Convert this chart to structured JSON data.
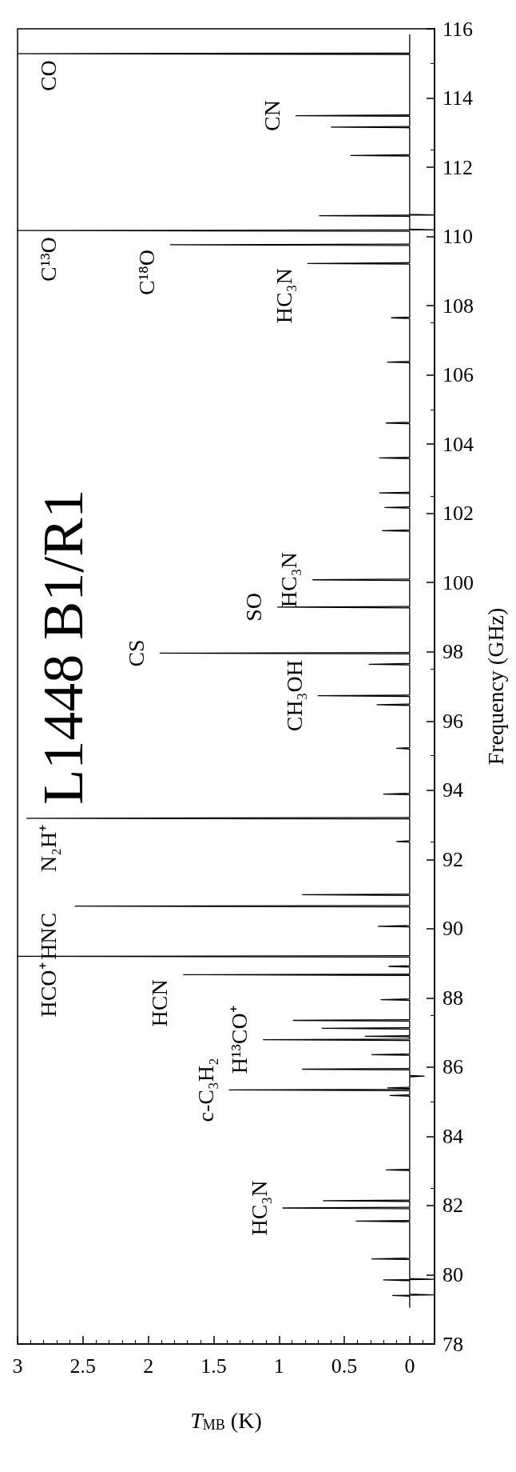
{
  "chart_data": {
    "type": "line",
    "title": "L1448 B1/R1",
    "xlabel": "T$_{MB}$ (K)",
    "ylabel": "Frequency (GHz)",
    "xlim": [
      3,
      -0.19
    ],
    "xticks": [
      3,
      2.5,
      2,
      1.5,
      1,
      0.5,
      0
    ],
    "ylim": [
      78,
      116
    ],
    "yticks": [
      78,
      80,
      82,
      84,
      86,
      88,
      90,
      92,
      94,
      96,
      98,
      100,
      102,
      104,
      106,
      108,
      110,
      112,
      114,
      116
    ],
    "grid": false,
    "marker": "none",
    "line_style": "solid",
    "series": [
      {
        "color": "#000000",
        "values": [
          79.06,
          79.38,
          79.4,
          79.42,
          79.44,
          79.83,
          79.85,
          79.87,
          79.89,
          80.44,
          80.46,
          80.48,
          81.53,
          81.55,
          81.57,
          81.91,
          81.93,
          81.95,
          82.12,
          82.14,
          82.16,
          83.01,
          83.03,
          83.05,
          85.16,
          85.18,
          85.2,
          85.32,
          85.34,
          85.36,
          85.38,
          85.4,
          85.42,
          85.72,
          85.74,
          85.76,
          85.92,
          85.94,
          85.96,
          86.34,
          86.36,
          86.38,
          86.77,
          86.79,
          86.81,
          86.87,
          86.89,
          86.91,
          87.1,
          87.12,
          87.14,
          87.33,
          87.35,
          87.37,
          87.93,
          87.95,
          87.97,
          88.65,
          88.67,
          88.69,
          88.89,
          88.91,
          88.93,
          89.18,
          89.2,
          89.22,
          90.05,
          90.07,
          90.09,
          90.63,
          90.65,
          90.67,
          90.96,
          90.98,
          91.0,
          92.5,
          92.52,
          92.54,
          93.17,
          93.19,
          93.21,
          93.87,
          93.89,
          93.91,
          95.19,
          95.21,
          95.23,
          96.45,
          96.47,
          96.49,
          96.71,
          96.73,
          96.75,
          97.62,
          97.64,
          97.66,
          97.94,
          97.96,
          97.98,
          99.27,
          99.29,
          99.31,
          100.06,
          100.08,
          100.1,
          101.48,
          101.5,
          101.52,
          102.15,
          102.17,
          102.19,
          102.57,
          102.59,
          102.61,
          103.58,
          103.6,
          103.62,
          104.59,
          104.61,
          104.63,
          106.35,
          106.37,
          106.39,
          107.63,
          107.65,
          107.67,
          109.2,
          109.22,
          109.24,
          109.74,
          109.76,
          109.78,
          110.15,
          110.17,
          110.19,
          110.21,
          110.58,
          110.6,
          110.62,
          110.64,
          112.32,
          112.34,
          112.36,
          113.14,
          113.16,
          113.18,
          113.47,
          113.49,
          113.51,
          115.26,
          115.28,
          115.3,
          115.83
        ],
        "x": [
          0,
          0,
          0.13,
          -0.19,
          0,
          0,
          0.2,
          -0.19,
          0,
          0,
          0.29,
          0,
          0,
          0.41,
          0,
          0,
          0.97,
          0,
          0,
          0.66,
          0,
          0,
          0.18,
          0,
          0,
          0.15,
          0,
          0,
          1.38,
          0,
          0,
          0.17,
          0,
          0,
          -0.11,
          0,
          0,
          0.82,
          0,
          0,
          0.29,
          0,
          0,
          1.12,
          0,
          0,
          0.34,
          0,
          0,
          0.67,
          0,
          0,
          0.89,
          0,
          0,
          0.22,
          0,
          0,
          1.73,
          0,
          0,
          0.16,
          0,
          0,
          3,
          0,
          0,
          0.24,
          0,
          0,
          2.56,
          0,
          0,
          0.82,
          0,
          0,
          0.1,
          0,
          0,
          2.93,
          0,
          0,
          0.2,
          0,
          0,
          0.1,
          0,
          0,
          0.25,
          0,
          0,
          0.7,
          0,
          0,
          0.31,
          0,
          0,
          1.91,
          0,
          0,
          1.01,
          0,
          0,
          0.74,
          0,
          0,
          0.21,
          0,
          0,
          0.19,
          0,
          0,
          0.23,
          0,
          0,
          0.23,
          0,
          0,
          0.18,
          0,
          0,
          0.17,
          0,
          0,
          0.14,
          0,
          0,
          0.78,
          0,
          0,
          1.83,
          0,
          0,
          3,
          -0.19,
          0,
          0,
          0.69,
          -0.19,
          0,
          0,
          0.45,
          0,
          0,
          0.6,
          0,
          0,
          0.87,
          0,
          0,
          3,
          0,
          0
        ]
      }
    ],
    "annotations": [
      {
        "text": "CO",
        "x": 3,
        "y": 115.28
      },
      {
        "text": "CN",
        "x": 0.87,
        "y": 113.49
      },
      {
        "text": "C¹³O",
        "x": 3,
        "y": 110.17
      },
      {
        "text": "C¹⁸O",
        "x": 1.83,
        "y": 109.76
      },
      {
        "text": "HC₃N",
        "x": 0.78,
        "y": 109.22
      },
      {
        "text": "HC₃N",
        "x": 0.74,
        "y": 100.08
      },
      {
        "text": "SO",
        "x": 1.01,
        "y": 99.29
      },
      {
        "text": "CS",
        "x": 1.91,
        "y": 97.96
      },
      {
        "text": "CH₃OH",
        "x": 0.7,
        "y": 96.73
      },
      {
        "text": "N₂H⁺",
        "x": 2.93,
        "y": 93.19
      },
      {
        "text": "HNC",
        "x": 2.56,
        "y": 90.65
      },
      {
        "text": "HCO⁺",
        "x": 3,
        "y": 89.2
      },
      {
        "text": "HCN",
        "x": 1.73,
        "y": 88.67
      },
      {
        "text": "H¹³CO⁺",
        "x": 1.12,
        "y": 86.79
      },
      {
        "text": "c-C₃H₂",
        "x": 1.38,
        "y": 85.34
      },
      {
        "text": "HC₃N",
        "x": 0.97,
        "y": 81.93
      }
    ]
  }
}
